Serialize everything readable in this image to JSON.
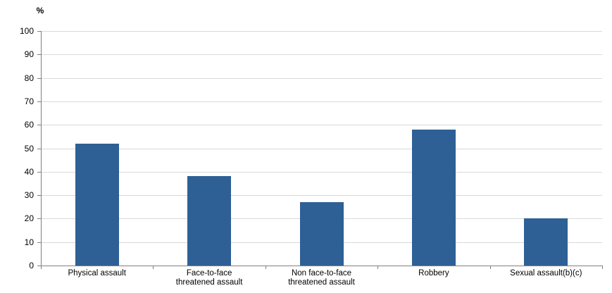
{
  "chart_data": {
    "type": "bar",
    "title": "",
    "xlabel": "",
    "ylabel": "%",
    "categories": [
      "Physical assault",
      "Face-to-face threatened assault",
      "Non face-to-face threatened assault",
      "Robbery",
      "Sexual assault(b)(c)"
    ],
    "category_label_lines": [
      [
        "Physical assault"
      ],
      [
        "Face-to-face",
        "threatened assault"
      ],
      [
        "Non face-to-face",
        "threatened assault"
      ],
      [
        "Robbery"
      ],
      [
        "Sexual assault(b)(c)"
      ]
    ],
    "values": [
      52,
      38,
      27,
      58,
      20
    ],
    "ylim": [
      0,
      100
    ],
    "ytick_step": 10,
    "grid": true,
    "legend": "none",
    "colors": {
      "bar": "#2E6095",
      "gridline": "#D9D9D9",
      "axis": "#808080",
      "text": "#000000",
      "background": "#FFFFFF"
    }
  }
}
